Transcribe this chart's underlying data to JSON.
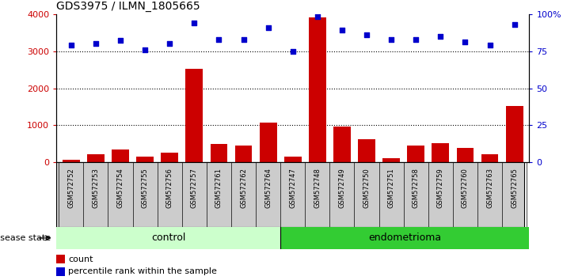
{
  "title": "GDS3975 / ILMN_1805665",
  "samples": [
    "GSM572752",
    "GSM572753",
    "GSM572754",
    "GSM572755",
    "GSM572756",
    "GSM572757",
    "GSM572761",
    "GSM572762",
    "GSM572764",
    "GSM572747",
    "GSM572748",
    "GSM572749",
    "GSM572750",
    "GSM572751",
    "GSM572758",
    "GSM572759",
    "GSM572760",
    "GSM572763",
    "GSM572765"
  ],
  "counts": [
    80,
    230,
    340,
    150,
    270,
    2520,
    500,
    460,
    1080,
    160,
    3900,
    960,
    620,
    120,
    450,
    510,
    380,
    230,
    1520
  ],
  "percentiles": [
    79,
    80,
    82,
    76,
    80,
    94,
    83,
    83,
    91,
    75,
    98,
    89,
    86,
    83,
    83,
    85,
    81,
    79,
    93
  ],
  "control_count": 9,
  "endometrioma_count": 10,
  "bar_color": "#cc0000",
  "dot_color": "#0000cc",
  "ylim_left": [
    0,
    4000
  ],
  "ylim_right": [
    0,
    100
  ],
  "yticks_left": [
    0,
    1000,
    2000,
    3000,
    4000
  ],
  "yticks_right": [
    0,
    25,
    50,
    75,
    100
  ],
  "yticklabels_right": [
    "0",
    "25",
    "50",
    "75",
    "100%"
  ],
  "control_label": "control",
  "endometrioma_label": "endometrioma",
  "disease_state_label": "disease state",
  "legend_count_label": "count",
  "legend_percentile_label": "percentile rank within the sample",
  "control_bg": "#ccffcc",
  "endometrioma_bg": "#33cc33",
  "xticklabel_bg": "#cccccc",
  "title_fontsize": 10,
  "tick_fontsize": 8,
  "bar_fontsize": 6
}
